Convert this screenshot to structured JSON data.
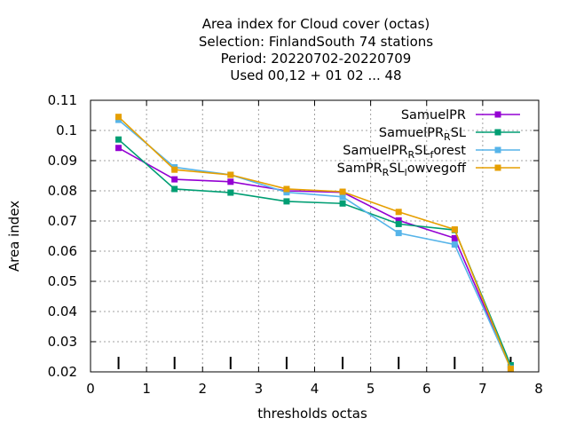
{
  "chart_data": {
    "type": "line",
    "title_lines": [
      "Area index  for Cloud cover (octas)",
      "Selection: FinlandSouth     74 stations",
      "Period: 20220702-20220709",
      "Used  00,12  + 01 02 ... 48"
    ],
    "xlabel": "thresholds octas",
    "ylabel": "Area index",
    "xlim": [
      0,
      8
    ],
    "ylim": [
      0.02,
      0.11
    ],
    "xticks": [
      0,
      1,
      2,
      3,
      4,
      5,
      6,
      7,
      8
    ],
    "yticks": [
      0.02,
      0.03,
      0.04,
      0.05,
      0.06,
      0.07,
      0.08,
      0.09,
      0.1,
      0.11
    ],
    "ytick_labels": [
      "0.02",
      "0.03",
      "0.04",
      "0.05",
      "0.06",
      "0.07",
      "0.08",
      "0.09",
      "0.1",
      "0.11"
    ],
    "grid": true,
    "legend_position": "top-right",
    "threshold_markers_x": [
      0.5,
      1.5,
      2.5,
      3.5,
      4.5,
      5.5,
      6.5,
      7.5
    ],
    "x": [
      0.5,
      1.5,
      2.5,
      3.5,
      4.5,
      5.5,
      6.5,
      7.5
    ],
    "series": [
      {
        "name": "SamuelPR",
        "legend_main": "SamuelPR",
        "legend_sub": "",
        "legend_tail": "",
        "color": "#9400d3",
        "values": [
          0.0942,
          0.0838,
          0.083,
          0.08,
          0.0795,
          0.0702,
          0.0643,
          0.0215
        ]
      },
      {
        "name": "SamuelPR_RSL",
        "legend_main": "SamuelPR",
        "legend_sub": "R",
        "legend_tail": "SL",
        "color": "#009e73",
        "values": [
          0.097,
          0.0806,
          0.0794,
          0.0765,
          0.0758,
          0.069,
          0.067,
          0.0222
        ]
      },
      {
        "name": "SamuelPR_RSL_forest",
        "legend_main": "SamuelPR",
        "legend_sub": "R",
        "legend_tail": "SL",
        "legend_sub2": "f",
        "legend_tail2": "orest",
        "color": "#56b4e9",
        "values": [
          0.1035,
          0.0878,
          0.0853,
          0.0795,
          0.078,
          0.066,
          0.0622,
          0.0212
        ]
      },
      {
        "name": "SamPR_RSL_lowvegoff",
        "legend_main": "SamPR",
        "legend_sub": "R",
        "legend_tail": "SL",
        "legend_sub2": "l",
        "legend_tail2": "owvegoff",
        "color": "#e69f00",
        "values": [
          0.1045,
          0.087,
          0.0853,
          0.0806,
          0.0797,
          0.073,
          0.0672,
          0.021
        ]
      }
    ]
  }
}
